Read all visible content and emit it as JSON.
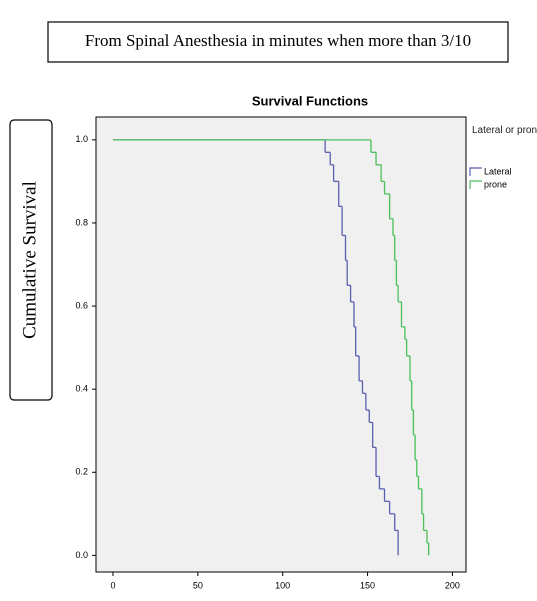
{
  "header": {
    "text": "From Spinal Anesthesia in minutes when more than 3/10"
  },
  "side_label": {
    "text": "Cumulative Survival"
  },
  "chart_data": {
    "type": "step",
    "title": "Survival Functions",
    "legend_title": "Lateral or prone",
    "legend": "right",
    "xlim": [
      -10,
      208
    ],
    "ylim": [
      -0.04,
      1.055
    ],
    "xticks": [
      0,
      50,
      100,
      150,
      200
    ],
    "yticks": [
      {
        "value": 0,
        "label": "0.0"
      },
      0.2,
      0.4,
      0.6,
      0.8,
      {
        "value": 1,
        "label": "1.0"
      }
    ],
    "series": [
      {
        "name": "Lateral",
        "color": "#5a5fb0",
        "x": [
          0,
          125,
          128,
          130,
          133,
          135,
          137,
          138,
          140,
          142,
          143,
          145,
          147,
          149,
          151,
          153,
          155,
          157,
          160,
          163,
          166,
          168
        ],
        "values": [
          1.0,
          0.97,
          0.94,
          0.9,
          0.84,
          0.77,
          0.71,
          0.65,
          0.61,
          0.55,
          0.48,
          0.42,
          0.39,
          0.35,
          0.32,
          0.26,
          0.19,
          0.16,
          0.13,
          0.1,
          0.06,
          0.0
        ]
      },
      {
        "name": "prone",
        "color": "#4cbf5a",
        "x": [
          0,
          152,
          155,
          158,
          160,
          163,
          165,
          166,
          167,
          168,
          170,
          172,
          173,
          175,
          176,
          177,
          178,
          179,
          180,
          182,
          183,
          185,
          186
        ],
        "values": [
          1.0,
          0.97,
          0.94,
          0.9,
          0.87,
          0.81,
          0.77,
          0.71,
          0.65,
          0.61,
          0.55,
          0.52,
          0.48,
          0.42,
          0.35,
          0.29,
          0.23,
          0.19,
          0.16,
          0.1,
          0.06,
          0.03,
          0.0
        ]
      }
    ]
  }
}
